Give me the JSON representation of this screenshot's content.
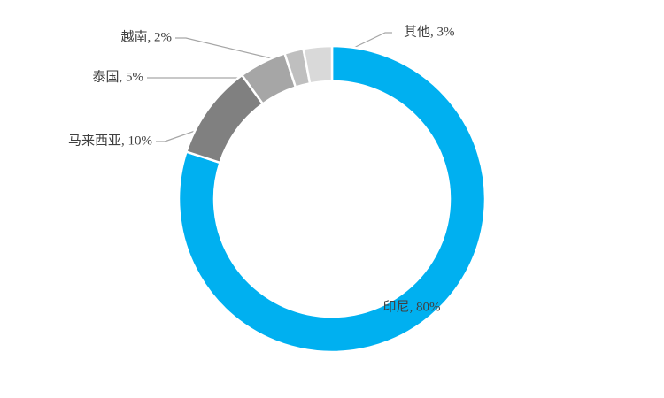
{
  "chart_data": {
    "type": "donut",
    "values": [
      80,
      10,
      5,
      2,
      3
    ],
    "value_labels": [
      "印尼, 80%",
      "马来西亚, 10%",
      "泰国, 5%",
      "越南, 2%",
      "其他, 3%"
    ],
    "colors": [
      "#00b0f0",
      "#808080",
      "#a6a6a6",
      "#bfbfbf",
      "#d9d9d9"
    ]
  }
}
